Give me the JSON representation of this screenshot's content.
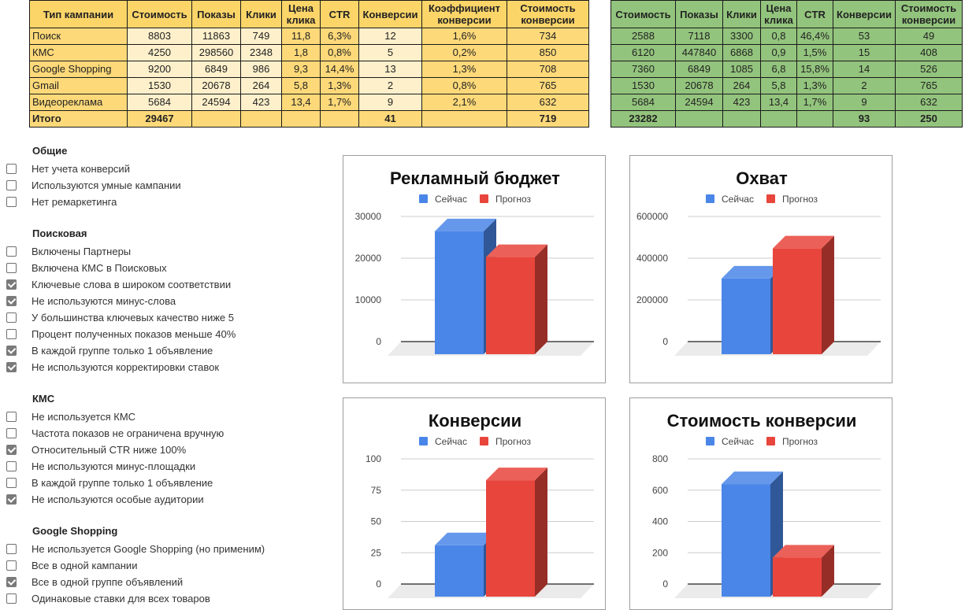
{
  "current_table": {
    "headers": [
      "Тип кампании",
      "Стоимость",
      "Показы",
      "Клики",
      "Цена клика",
      "CTR",
      "Конверсии",
      "Коэффициент конверсии",
      "Стоимость конверсии"
    ],
    "rows": [
      [
        "Поиск",
        "8803",
        "11863",
        "749",
        "11,8",
        "6,3%",
        "12",
        "1,6%",
        "734"
      ],
      [
        "КМС",
        "4250",
        "298560",
        "2348",
        "1,8",
        "0,8%",
        "5",
        "0,2%",
        "850"
      ],
      [
        "Google Shopping",
        "9200",
        "6849",
        "986",
        "9,3",
        "14,4%",
        "13",
        "1,3%",
        "708"
      ],
      [
        "Gmail",
        "1530",
        "20678",
        "264",
        "5,8",
        "1,3%",
        "2",
        "0,8%",
        "765"
      ],
      [
        "Видеореклама",
        "5684",
        "24594",
        "423",
        "13,4",
        "1,7%",
        "9",
        "2,1%",
        "632"
      ]
    ],
    "total": [
      "Итого",
      "29467",
      "",
      "",
      "",
      "",
      "41",
      "",
      "719"
    ],
    "colors": {
      "header": "#fcd569",
      "dark_cell": "#fdd979",
      "light_cell": "#fef0cb"
    }
  },
  "forecast_table": {
    "headers": [
      "Стоимость",
      "Показы",
      "Клики",
      "Цена клика",
      "CTR",
      "Конверсии",
      "Стоимость конверсии"
    ],
    "rows": [
      [
        "2588",
        "7118",
        "3300",
        "0,8",
        "46,4%",
        "53",
        "49"
      ],
      [
        "6120",
        "447840",
        "6868",
        "0,9",
        "1,5%",
        "15",
        "408"
      ],
      [
        "7360",
        "6849",
        "1085",
        "6,8",
        "15,8%",
        "14",
        "526"
      ],
      [
        "1530",
        "20678",
        "264",
        "5,8",
        "1,3%",
        "2",
        "765"
      ],
      [
        "5684",
        "24594",
        "423",
        "13,4",
        "1,7%",
        "9",
        "632"
      ]
    ],
    "total": [
      "23282",
      "",
      "",
      "",
      "",
      "93",
      "250"
    ],
    "colors": {
      "cell": "#93c47d"
    }
  },
  "checklist": [
    {
      "title": "Общие",
      "items": [
        {
          "label": "Нет учета конверсий",
          "checked": false
        },
        {
          "label": "Используются умные кампании",
          "checked": false
        },
        {
          "label": "Нет ремаркетинга",
          "checked": false
        }
      ]
    },
    {
      "title": "Поисковая",
      "items": [
        {
          "label": "Включены Партнеры",
          "checked": false
        },
        {
          "label": "Включена КМС в Поисковых",
          "checked": false
        },
        {
          "label": "Ключевые слова в широком соответствии",
          "checked": true
        },
        {
          "label": "Не используются минус-слова",
          "checked": true
        },
        {
          "label": "У большинства ключевых качество ниже 5",
          "checked": false
        },
        {
          "label": "Процент полученных показов меньше 40%",
          "checked": false
        },
        {
          "label": "В каждой группе только 1 объявление",
          "checked": true
        },
        {
          "label": "Не используются корректировки ставок",
          "checked": true
        }
      ]
    },
    {
      "title": "КМС",
      "items": [
        {
          "label": "Не используется КМС",
          "checked": false
        },
        {
          "label": "Частота показов не ограничена вручную",
          "checked": false
        },
        {
          "label": "Относительный CTR ниже 100%",
          "checked": true
        },
        {
          "label": "Не используются минус-площадки",
          "checked": false
        },
        {
          "label": "В каждой группе только 1 объявление",
          "checked": false
        },
        {
          "label": "Не используются особые аудитории",
          "checked": true
        }
      ]
    },
    {
      "title": "Google Shopping",
      "items": [
        {
          "label": "Не используется Google Shopping (но применим)",
          "checked": false
        },
        {
          "label": "Все в одной кампании",
          "checked": false
        },
        {
          "label": "Все в одной группе объявлений",
          "checked": true
        },
        {
          "label": "Одинаковые ставки для всех товаров",
          "checked": false
        }
      ]
    }
  ],
  "chart_data": [
    {
      "type": "bar",
      "title": "Рекламный бюджет",
      "categories": [
        ""
      ],
      "series": [
        {
          "name": "Сейчас",
          "values": [
            29467
          ],
          "color": "#4a86e8"
        },
        {
          "name": "Прогноз",
          "values": [
            23282
          ],
          "color": "#e8453c"
        }
      ],
      "yticks": [
        "0",
        "10000",
        "20000",
        "30000"
      ],
      "ylim": [
        0,
        30000
      ],
      "grid": true,
      "legend": "top"
    },
    {
      "type": "bar",
      "title": "Охват",
      "categories": [
        ""
      ],
      "series": [
        {
          "name": "Сейчас",
          "values": [
            362544
          ],
          "color": "#4a86e8"
        },
        {
          "name": "Прогноз",
          "values": [
            507079
          ],
          "color": "#e8453c"
        }
      ],
      "yticks": [
        "0",
        "200000",
        "400000",
        "600000"
      ],
      "ylim": [
        0,
        600000
      ],
      "grid": true,
      "legend": "top"
    },
    {
      "type": "bar",
      "title": "Конверсии",
      "categories": [
        ""
      ],
      "series": [
        {
          "name": "Сейчас",
          "values": [
            41
          ],
          "color": "#4a86e8"
        },
        {
          "name": "Прогноз",
          "values": [
            93
          ],
          "color": "#e8453c"
        }
      ],
      "yticks": [
        "0",
        "25",
        "50",
        "75",
        "100"
      ],
      "ylim": [
        0,
        100
      ],
      "grid": true,
      "legend": "top"
    },
    {
      "type": "bar",
      "title": "Стоимость конверсии",
      "categories": [
        ""
      ],
      "series": [
        {
          "name": "Сейчас",
          "values": [
            719
          ],
          "color": "#4a86e8"
        },
        {
          "name": "Прогноз",
          "values": [
            250
          ],
          "color": "#e8453c"
        }
      ],
      "yticks": [
        "0",
        "200",
        "400",
        "600",
        "800"
      ],
      "ylim": [
        0,
        800
      ],
      "grid": true,
      "legend": "top"
    }
  ]
}
